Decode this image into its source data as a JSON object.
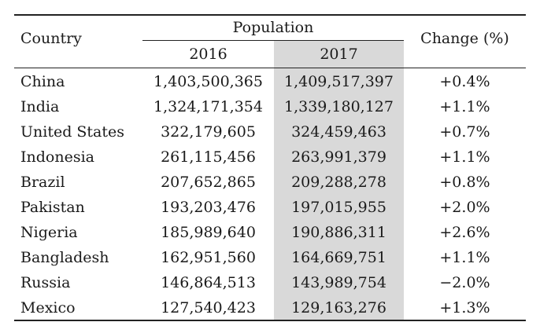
{
  "header": {
    "country": "Country",
    "population": "Population",
    "year_2016": "2016",
    "year_2017": "2017",
    "change": "Change (%)"
  },
  "rows": [
    {
      "country": "China",
      "p2016": "1,403,500,365",
      "p2017": "1,409,517,397",
      "change": "+0.4%"
    },
    {
      "country": "India",
      "p2016": "1,324,171,354",
      "p2017": "1,339,180,127",
      "change": "+1.1%"
    },
    {
      "country": "United States",
      "p2016": "322,179,605",
      "p2017": "324,459,463",
      "change": "+0.7%"
    },
    {
      "country": "Indonesia",
      "p2016": "261,115,456",
      "p2017": "263,991,379",
      "change": "+1.1%"
    },
    {
      "country": "Brazil",
      "p2016": "207,652,865",
      "p2017": "209,288,278",
      "change": "+0.8%"
    },
    {
      "country": "Pakistan",
      "p2016": "193,203,476",
      "p2017": "197,015,955",
      "change": "+2.0%"
    },
    {
      "country": "Nigeria",
      "p2016": "185,989,640",
      "p2017": "190,886,311",
      "change": "+2.6%"
    },
    {
      "country": "Bangladesh",
      "p2016": "162,951,560",
      "p2017": "164,669,751",
      "change": "+1.1%"
    },
    {
      "country": "Russia",
      "p2016": "146,864,513",
      "p2017": "143,989,754",
      "change": "−2.0%"
    },
    {
      "country": "Mexico",
      "p2016": "127,540,423",
      "p2017": "129,163,276",
      "change": "+1.3%"
    }
  ],
  "colors": {
    "highlight_column": "#d9d9d9",
    "rule": "#222222"
  }
}
